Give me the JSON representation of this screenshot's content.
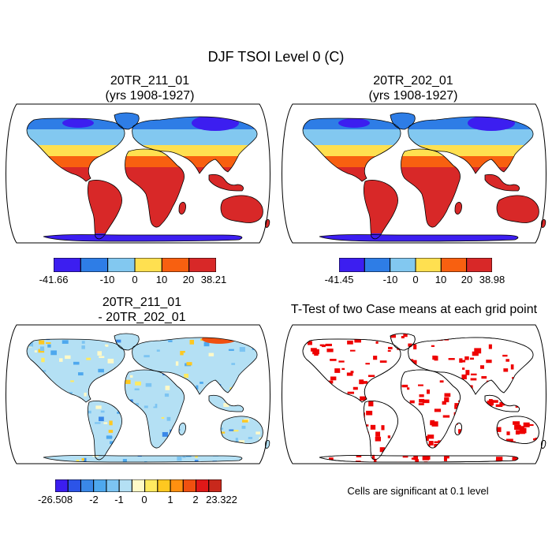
{
  "title": "DJF TSOI Level 0 (C)",
  "panels": [
    {
      "id": "a",
      "title_line1": "20TR_211_01",
      "title_line2": "(yrs 1908-1927)"
    },
    {
      "id": "b",
      "title_line1": "20TR_202_01",
      "title_line2": "(yrs 1908-1927)"
    },
    {
      "id": "c",
      "title_line1": "20TR_211_01",
      "title_line2": "- 20TR_202_01"
    },
    {
      "id": "d",
      "title_line1": "T-Test of two Case means at each grid point",
      "title_line2": ""
    }
  ],
  "colorbars": {
    "a": {
      "colors": [
        "#3c1ef0",
        "#2e7de6",
        "#82c8f0",
        "#ffe050",
        "#f86010",
        "#d82828"
      ],
      "labels": [
        "-41.66",
        "-10",
        "0",
        "10",
        "20",
        "38.21"
      ]
    },
    "b": {
      "colors": [
        "#3c1ef0",
        "#2e7de6",
        "#82c8f0",
        "#ffe050",
        "#f86010",
        "#d82828"
      ],
      "labels": [
        "-41.45",
        "-10",
        "0",
        "10",
        "20",
        "38.98"
      ]
    },
    "c": {
      "colors": [
        "#3c1ef0",
        "#2c54e8",
        "#3a88e8",
        "#4ea8ee",
        "#7cc4f2",
        "#b4e0f4",
        "#fffac8",
        "#ffea60",
        "#ffc820",
        "#ff9010",
        "#f05010",
        "#e01818",
        "#c8281c"
      ],
      "labels": [
        "-26.508",
        "-2",
        "-1",
        "0",
        "1",
        "2",
        "23.322"
      ]
    }
  },
  "significance_note": "Cells are significant at 0.1 level",
  "colors": {
    "ttest_fill": "#ee0000",
    "land_cold": "#2e7de6",
    "land_hot": "#d82828"
  }
}
